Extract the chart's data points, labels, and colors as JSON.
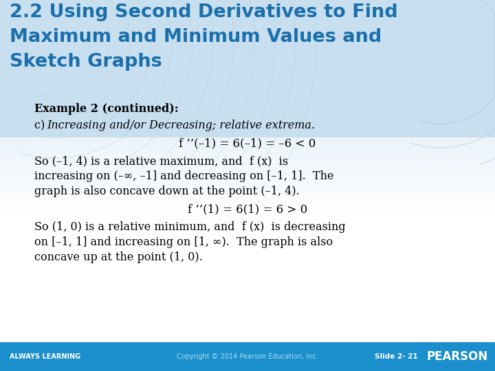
{
  "title_line1": "2.2 Using Second Derivatives to Find",
  "title_line2": "Maximum and Minimum Values and",
  "title_line3": "Sketch Graphs",
  "title_color": "#1B6FAB",
  "bg_top_color": "#C8DFF0",
  "bg_bottom_color": "#FFFFFF",
  "footer_bg": "#1B8FCC",
  "footer_text_left": "ALWAYS LEARNING",
  "footer_text_center": "Copyright © 2014 Pearson Education, Inc.",
  "footer_text_right": "Slide 2- 21",
  "example_header": "Example 2 (continued):",
  "part_c_label": "c) ",
  "part_c_italic": "Increasing and/or Decreasing; relative extrema.",
  "eq1_plain": "f ’’(–1) = 6(–1) = –6 < 0",
  "text1_line1": "So (–1, 4) is a relative maximum, and  f (x)  is",
  "text1_line2": "increasing on (–∞, –1] and decreasing on [–1, 1].  The",
  "text1_line3": "graph is also concave down at the point (–1, 4).",
  "eq2_plain": "f ’’(1) = 6(1) = 6 > 0",
  "text2_line1": "So (1, 0) is a relative minimum, and  f (x)  is decreasing",
  "text2_line2": "on [–1, 1] and increasing on [1, ∞).  The graph is also",
  "text2_line3": "concave up at the point (1, 0).",
  "body_text_color": "#000000",
  "wave_color": "#B0CDE0"
}
